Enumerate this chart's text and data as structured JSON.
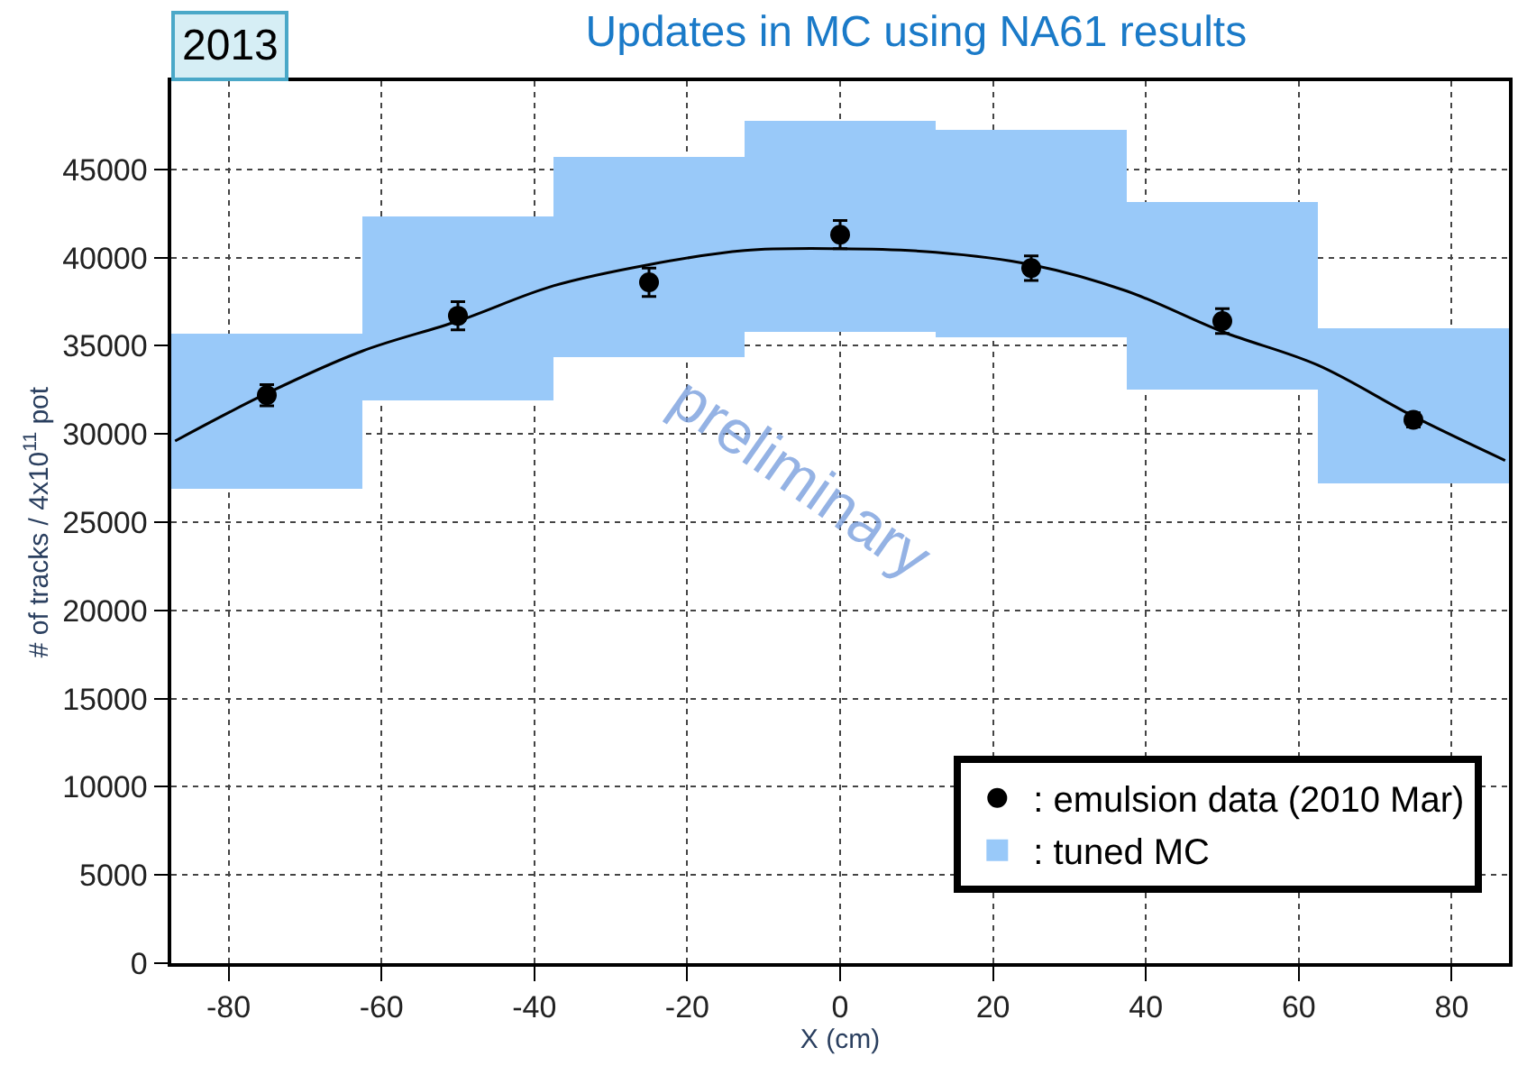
{
  "chart_data": {
    "type": "scatter",
    "title": "Updates in MC using NA61 results",
    "xlabel": "X (cm)",
    "ylabel": "# of tracks / 4x10$^{11}$ pot",
    "annotations": [
      "2013",
      "preliminary"
    ],
    "x": [
      -75,
      -50,
      -25,
      0,
      25,
      50,
      75
    ],
    "series": [
      {
        "type": "bar",
        "name": ": tuned MC",
        "color": "#99c9f9",
        "base": [
          26900,
          31900,
          34400,
          35800,
          35500,
          32500,
          27200
        ],
        "values": [
          8800,
          10400,
          11300,
          11900,
          11700,
          10600,
          8800
        ]
      },
      {
        "name": ": emulsion data (2010 Mar)",
        "color": "#000000",
        "values": [
          32200,
          36700,
          38600,
          41300,
          39400,
          36400,
          30800
        ],
        "errors": [
          600,
          800,
          800,
          800,
          700,
          700,
          400
        ]
      },
      {
        "type": "line",
        "color": "#000000",
        "x": [
          -87,
          -75,
          -62.5,
          -50,
          -37.5,
          -25,
          -12.5,
          0,
          12.5,
          25,
          37.5,
          50,
          62.5,
          75,
          87
        ],
        "values": [
          29600,
          32300,
          34700,
          36400,
          38400,
          39600,
          40400,
          40500,
          40300,
          39600,
          38100,
          35800,
          33900,
          31000,
          28500
        ]
      }
    ],
    "xlim": [
      -87.5,
      87.5
    ],
    "xticks": [
      -80,
      -60,
      -40,
      -20,
      0,
      20,
      40,
      60,
      80
    ],
    "ylim": [
      0,
      50000
    ],
    "yticks": [
      0,
      5000,
      10000,
      15000,
      20000,
      25000,
      30000,
      35000,
      40000,
      45000
    ],
    "grid": true,
    "legend": "bottom right"
  }
}
